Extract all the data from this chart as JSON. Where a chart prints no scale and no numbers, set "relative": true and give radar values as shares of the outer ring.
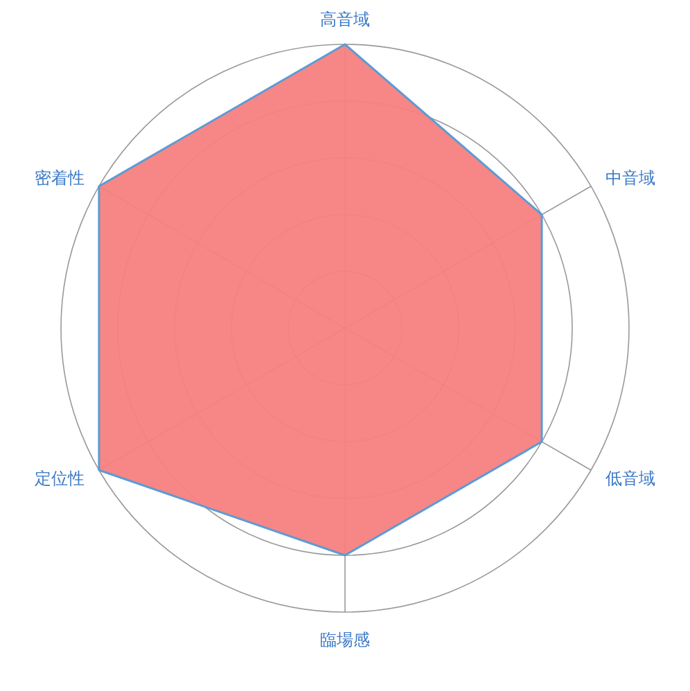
{
  "chart_data": {
    "type": "radar",
    "relative": true,
    "categories": [
      "高音域",
      "中音域",
      "低音域",
      "臨場感",
      "定位性",
      "密着性"
    ],
    "series": [
      {
        "color": "#f77f80",
        "values": [
          1,
          0.8,
          0.8,
          0.8,
          1,
          1
        ]
      }
    ]
  }
}
